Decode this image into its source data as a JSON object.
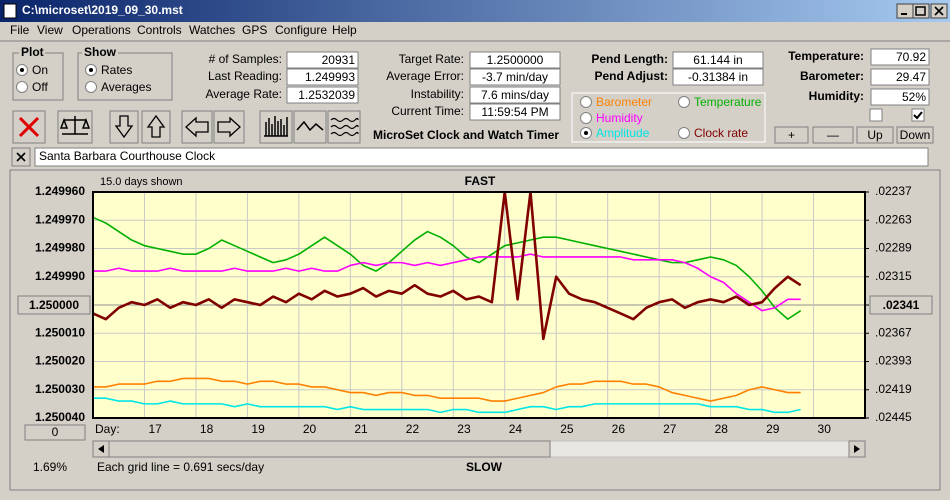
{
  "window": {
    "title": "C:\\microset\\2019_09_30.mst"
  },
  "menu": [
    "File",
    "View",
    "Operations",
    "Controls",
    "Watches",
    "GPS",
    "Configure",
    "Help"
  ],
  "plot_group": {
    "title": "Plot",
    "options": [
      "On",
      "Off"
    ],
    "selected": 0
  },
  "show_group": {
    "title": "Show",
    "options": [
      "Rates",
      "Averages"
    ],
    "selected": 0
  },
  "readings": {
    "left": [
      {
        "label": "# of Samples:",
        "value": "20931"
      },
      {
        "label": "Last Reading:",
        "value": "1.249993"
      },
      {
        "label": "Average Rate:",
        "value": "1.2532039"
      }
    ],
    "middle": [
      {
        "label": "Target Rate:",
        "value": "1.2500000"
      },
      {
        "label": "Average Error:",
        "value": "-3.7 min/day"
      },
      {
        "label": "Instability:",
        "value": "7.6 mins/day"
      },
      {
        "label": "Current Time:",
        "value": "11:59:54 PM"
      }
    ],
    "pendulum": [
      {
        "label": "Pend Length:",
        "value": "61.144 in"
      },
      {
        "label": "Pend Adjust:",
        "value": "-0.31384 in"
      }
    ],
    "environment": [
      {
        "label": "Temperature:",
        "value": "70.92"
      },
      {
        "label": "Barometer:",
        "value": "29.47"
      },
      {
        "label": "Humidity:",
        "value": "52%"
      }
    ]
  },
  "app_title": "MicroSet Clock and Watch Timer",
  "checkboxes": [
    false,
    true
  ],
  "buttons": [
    "+",
    "—",
    "Up",
    "Down"
  ],
  "clock_name": "Santa Barbara Courthouse Clock",
  "chart_data": {
    "type": "line",
    "days_shown": "15.0 days shown",
    "top_label": "FAST",
    "bottom_label": "SLOW",
    "x_label": "Day:",
    "scale_percent": "1.69%",
    "grid_note": "Each grid line = 0.691 secs/day",
    "offset_button": "0",
    "selected_series": 3,
    "grid": true,
    "y_inverted": true,
    "xlim": [
      16,
      31
    ],
    "xticks": [
      17,
      18,
      19,
      20,
      21,
      22,
      23,
      24,
      25,
      26,
      27,
      28,
      29,
      30
    ],
    "ylim": [
      1.24996,
      1.25004
    ],
    "yticks": [
      {
        "value": 1.24996,
        "label": "1.249960"
      },
      {
        "value": 1.24997,
        "label": "1.249970"
      },
      {
        "value": 1.24998,
        "label": "1.249980"
      },
      {
        "value": 1.24999,
        "label": "1.249990"
      },
      {
        "value": 1.25,
        "label": "1.250000"
      },
      {
        "value": 1.25001,
        "label": "1.250010"
      },
      {
        "value": 1.25002,
        "label": "1.250020"
      },
      {
        "value": 1.25003,
        "label": "1.250030"
      },
      {
        "value": 1.25004,
        "label": "1.250040"
      }
    ],
    "y2lim": [
      0.02237,
      0.02445
    ],
    "y2ticks": [
      {
        "value": 0.02237,
        "label": ".02237"
      },
      {
        "value": 0.02263,
        "label": ".02263"
      },
      {
        "value": 0.02289,
        "label": ".02289"
      },
      {
        "value": 0.02315,
        "label": ".02315"
      },
      {
        "value": 0.02341,
        "label": ".02341"
      },
      {
        "value": 0.02367,
        "label": ".02367"
      },
      {
        "value": 0.02393,
        "label": ".02393"
      },
      {
        "value": 0.02419,
        "label": ".02419"
      },
      {
        "value": 0.02445,
        "label": ".02445"
      }
    ],
    "x": [
      16,
      16.25,
      16.5,
      16.75,
      17,
      17.25,
      17.5,
      17.75,
      18,
      18.25,
      18.5,
      18.75,
      19,
      19.25,
      19.5,
      19.75,
      20,
      20.25,
      20.5,
      20.75,
      21,
      21.25,
      21.5,
      21.75,
      22,
      22.25,
      22.5,
      22.75,
      23,
      23.25,
      23.5,
      23.75,
      24,
      24.25,
      24.5,
      24.75,
      25,
      25.25,
      25.5,
      25.75,
      26,
      26.25,
      26.5,
      26.75,
      27,
      27.25,
      27.5,
      27.75,
      28,
      28.25,
      28.5,
      28.75,
      29,
      29.25,
      29.5,
      29.75
    ],
    "series": [
      {
        "name": "Barometer",
        "color": "#ff8000",
        "values": [
          1.250029,
          1.250029,
          1.250028,
          1.250028,
          1.250028,
          1.250027,
          1.250027,
          1.250026,
          1.250026,
          1.250026,
          1.250027,
          1.250027,
          1.250028,
          1.250027,
          1.250027,
          1.250028,
          1.250028,
          1.250029,
          1.250029,
          1.25003,
          1.250031,
          1.250031,
          1.250032,
          1.250031,
          1.250031,
          1.250032,
          1.250032,
          1.250033,
          1.250033,
          1.250033,
          1.250033,
          1.250034,
          1.250034,
          1.250033,
          1.250032,
          1.250031,
          1.250029,
          1.250028,
          1.250028,
          1.250027,
          1.250027,
          1.250027,
          1.250028,
          1.250028,
          1.250029,
          1.250031,
          1.250032,
          1.250033,
          1.250034,
          1.250033,
          1.250032,
          1.25003,
          1.250029,
          1.25003,
          1.250031,
          1.250031
        ]
      },
      {
        "name": "Temperature",
        "color": "#00b000",
        "values": [
          1.249969,
          1.249971,
          1.249974,
          1.249977,
          1.249979,
          1.24998,
          1.249981,
          1.249982,
          1.249982,
          1.24998,
          1.249977,
          1.249979,
          1.249981,
          1.249983,
          1.249985,
          1.249984,
          1.249982,
          1.249979,
          1.249976,
          1.249979,
          1.249982,
          1.249986,
          1.249988,
          1.249985,
          1.249981,
          1.249977,
          1.249974,
          1.249976,
          1.249979,
          1.249983,
          1.249985,
          1.249982,
          1.249979,
          1.249978,
          1.249977,
          1.249976,
          1.249976,
          1.249977,
          1.249978,
          1.249979,
          1.24998,
          1.249981,
          1.249982,
          1.249983,
          1.249984,
          1.249985,
          1.249985,
          1.249984,
          1.249983,
          1.249984,
          1.249986,
          1.24999,
          1.249995,
          1.250001,
          1.250005,
          1.250002
        ]
      },
      {
        "name": "Humidity",
        "color": "#ff00ff",
        "values": [
          1.249988,
          1.249988,
          1.249987,
          1.249988,
          1.249988,
          1.249988,
          1.249987,
          1.249988,
          1.249988,
          1.249988,
          1.249988,
          1.249987,
          1.249988,
          1.249988,
          1.249988,
          1.249987,
          1.249988,
          1.249987,
          1.249988,
          1.249988,
          1.249986,
          1.249985,
          1.249986,
          1.249985,
          1.249985,
          1.249986,
          1.249985,
          1.249986,
          1.249985,
          1.249984,
          1.249983,
          1.249983,
          1.249983,
          1.249983,
          1.249982,
          1.249983,
          1.249983,
          1.249983,
          1.249983,
          1.249983,
          1.249983,
          1.249983,
          1.249984,
          1.249984,
          1.249984,
          1.249984,
          1.249985,
          1.249987,
          1.24999,
          1.249992,
          1.249996,
          1.249999,
          1.250002,
          1.250001,
          1.249998,
          1.249998
        ]
      },
      {
        "name": "Amplitude",
        "color": "#00e5e5",
        "values": [
          1.250033,
          1.250033,
          1.250034,
          1.250034,
          1.250035,
          1.250035,
          1.250034,
          1.250035,
          1.250035,
          1.250035,
          1.250035,
          1.250036,
          1.250035,
          1.250036,
          1.250036,
          1.250036,
          1.250036,
          1.250036,
          1.250036,
          1.250037,
          1.250036,
          1.250037,
          1.250037,
          1.250037,
          1.250037,
          1.250037,
          1.250037,
          1.250038,
          1.250037,
          1.250037,
          1.250038,
          1.250038,
          1.250038,
          1.250037,
          1.250036,
          1.250036,
          1.250037,
          1.250036,
          1.250036,
          1.250035,
          1.250035,
          1.250035,
          1.250035,
          1.250035,
          1.250035,
          1.250035,
          1.250035,
          1.250035,
          1.250036,
          1.250036,
          1.250036,
          1.250037,
          1.250037,
          1.250038,
          1.250038,
          1.250037
        ]
      },
      {
        "name": "Clock rate",
        "color": "#800000",
        "values": [
          1.250003,
          1.250005,
          1.250001,
          1.249999,
          1.25,
          1.249998,
          1.250001,
          1.249999,
          1.25,
          1.249998,
          1.250001,
          1.249998,
          1.249999,
          1.25,
          1.249997,
          1.249999,
          1.249996,
          1.249998,
          1.249995,
          1.249997,
          1.249996,
          1.249994,
          1.249997,
          1.249995,
          1.249996,
          1.249993,
          1.249996,
          1.249997,
          1.249995,
          1.249998,
          1.249997,
          1.249999,
          1.24996,
          1.249998,
          1.24996,
          1.250012,
          1.24999,
          1.249996,
          1.249998,
          1.249999,
          1.250001,
          1.250003,
          1.250005,
          1.250001,
          1.249999,
          1.249998,
          1.250001,
          1.249999,
          1.249998,
          1.249999,
          1.249997,
          1.25,
          1.249999,
          1.249994,
          1.24999,
          1.249993
        ]
      }
    ]
  }
}
